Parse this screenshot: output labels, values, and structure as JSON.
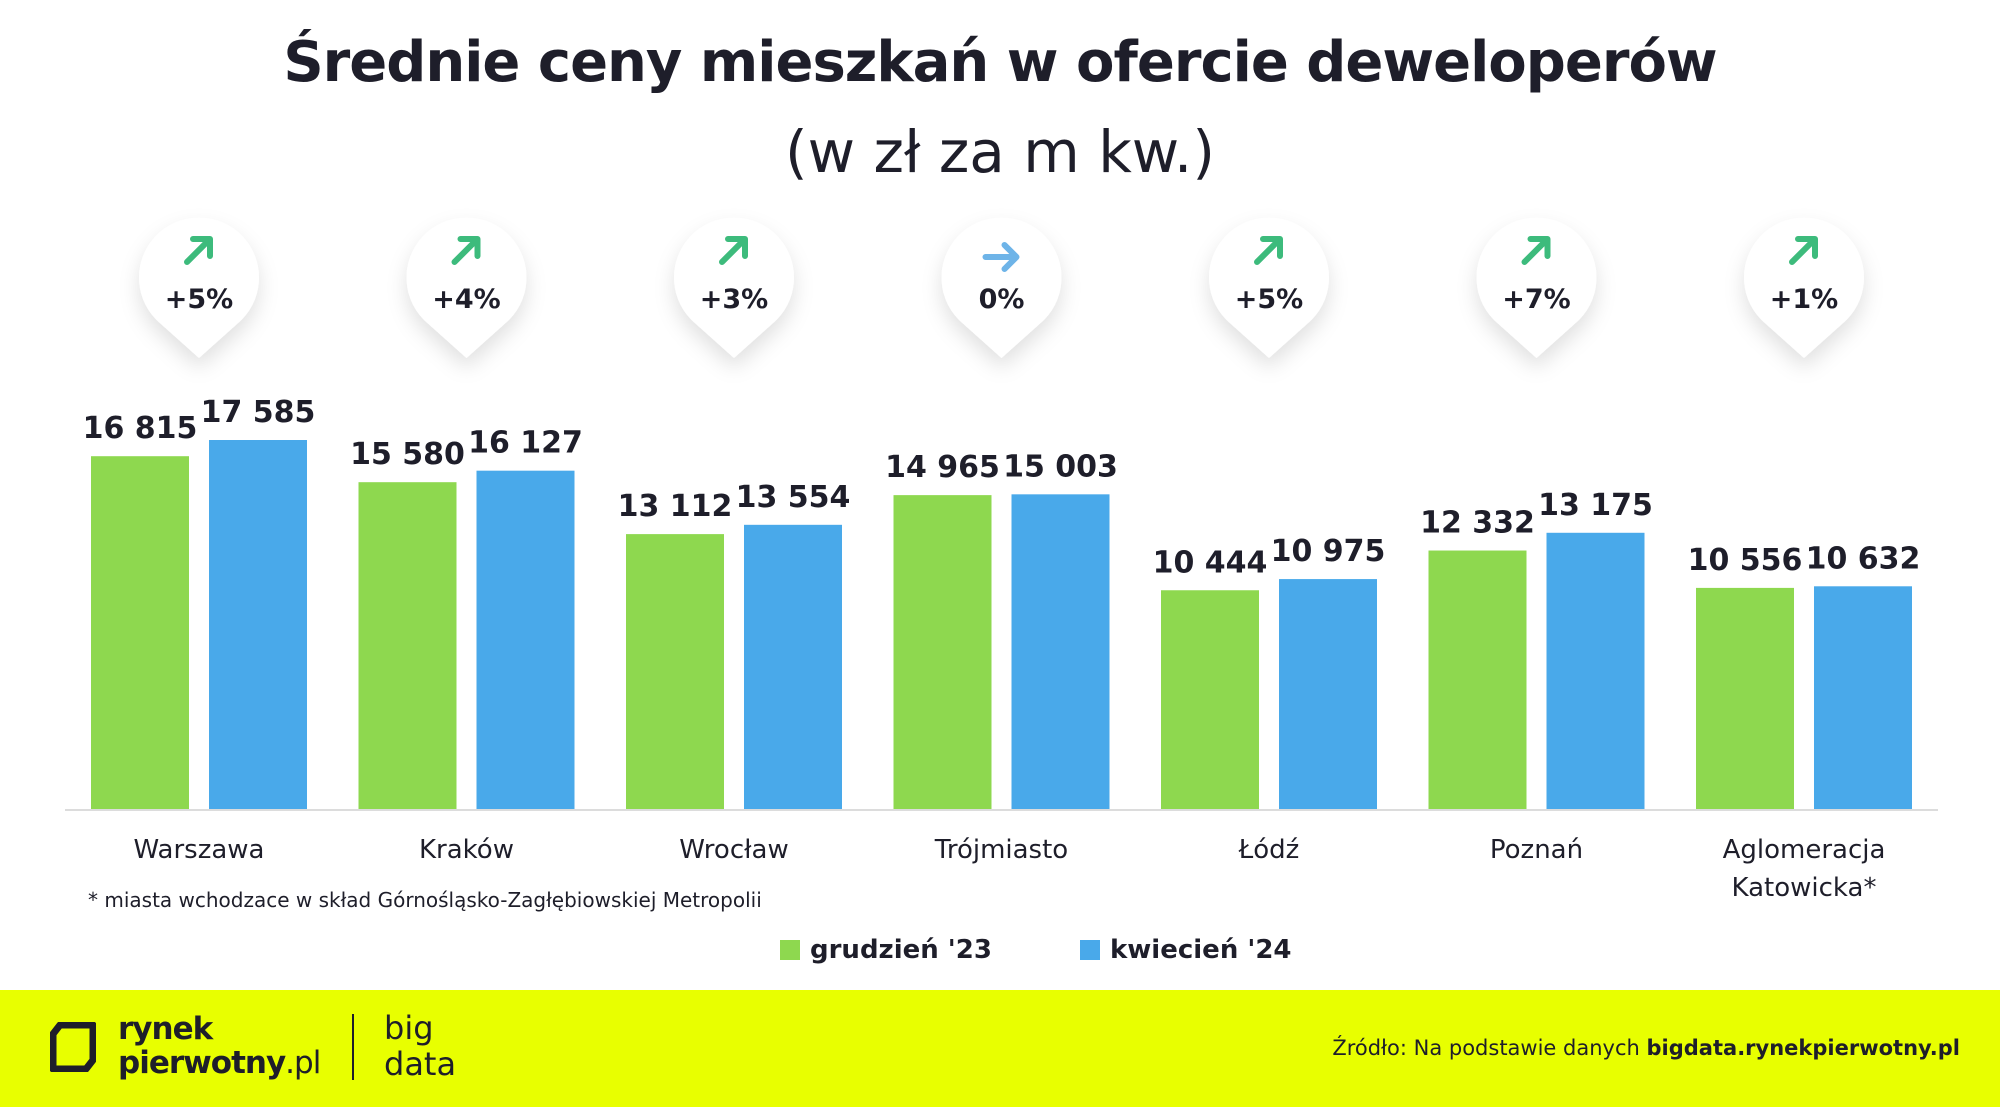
{
  "chart_data": {
    "type": "bar",
    "title": "Średnie ceny mieszkań w ofercie deweloperów",
    "subtitle": "(w zł za m kw.)",
    "categories": [
      "Warszawa",
      "Kraków",
      "Wrocław",
      "Trójmiasto",
      "Łódź",
      "Poznań",
      "Aglomeracja Katowicka*"
    ],
    "series": [
      {
        "name": "grudzień '23",
        "color": "#8ed84f",
        "values": [
          16815,
          15580,
          13112,
          14965,
          10444,
          12332,
          10556
        ],
        "labels": [
          "16 815",
          "15 580",
          "13 112",
          "14 965",
          "10 444",
          "12 332",
          "10 556"
        ]
      },
      {
        "name": "kwiecień '24",
        "color": "#49a9ea",
        "values": [
          17585,
          16127,
          13554,
          15003,
          10975,
          13175,
          10632
        ],
        "labels": [
          "17 585",
          "16 127",
          "13 554",
          "15 003",
          "10 975",
          "13 175",
          "10 632"
        ]
      }
    ],
    "changes": [
      {
        "text": "+5%",
        "direction": "up"
      },
      {
        "text": "+4%",
        "direction": "up"
      },
      {
        "text": "+3%",
        "direction": "up"
      },
      {
        "text": "0%",
        "direction": "flat"
      },
      {
        "text": "+5%",
        "direction": "up"
      },
      {
        "text": "+7%",
        "direction": "up"
      },
      {
        "text": "+1%",
        "direction": "up"
      }
    ],
    "change_colors": {
      "up": "#3dbb7c",
      "flat": "#6eb4e8"
    },
    "ylim": [
      0,
      17585
    ],
    "grid": false,
    "legend_position": "bottom-center"
  },
  "footnote": "* miasta wchodzace w skład Górnośląsko-Zagłębiowskiej Metropolii",
  "footer": {
    "logo_line1": "rynek",
    "logo_line2_bold": "pierwotny",
    "logo_line2_thin": ".pl",
    "bigdata_line1": "big",
    "bigdata_line2": "data",
    "source_prefix": "Źródło: Na podstawie danych",
    "source_bold": "bigdata.rynekpierwotny.pl",
    "background": "#e8ff00"
  }
}
